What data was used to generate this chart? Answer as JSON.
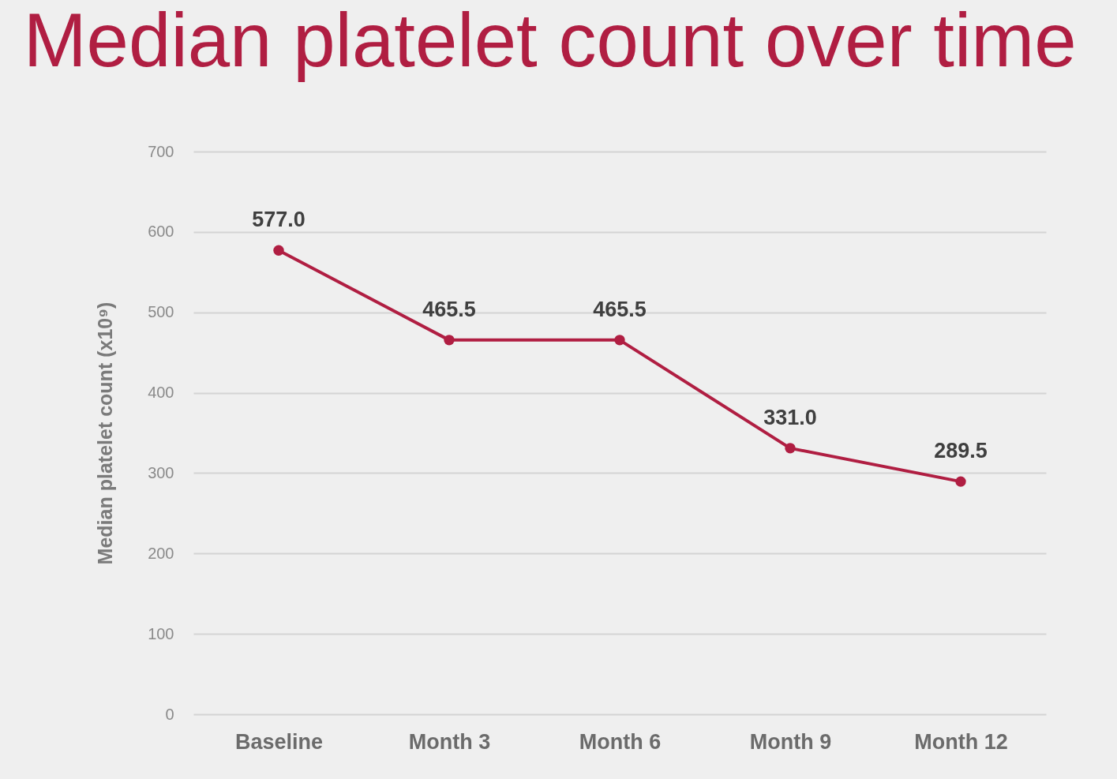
{
  "chart_data": {
    "type": "line",
    "title": "Median platelet count over time",
    "ylabel": "Median platelet count (x10⁹)",
    "categories": [
      "Baseline",
      "Month 3",
      "Month 6",
      "Month 9",
      "Month 12"
    ],
    "series": [
      {
        "color": "#b01e42",
        "values": [
          577.0,
          465.5,
          465.5,
          331.0,
          289.5
        ],
        "value_labels": [
          "577.0",
          "465.5",
          "465.5",
          "331.0",
          "289.5"
        ]
      }
    ],
    "ylim": [
      0,
      700
    ],
    "yticks": [
      0,
      100,
      200,
      300,
      400,
      500,
      600,
      700
    ],
    "grid": "y",
    "marker": "circle",
    "line_style": "solid"
  }
}
